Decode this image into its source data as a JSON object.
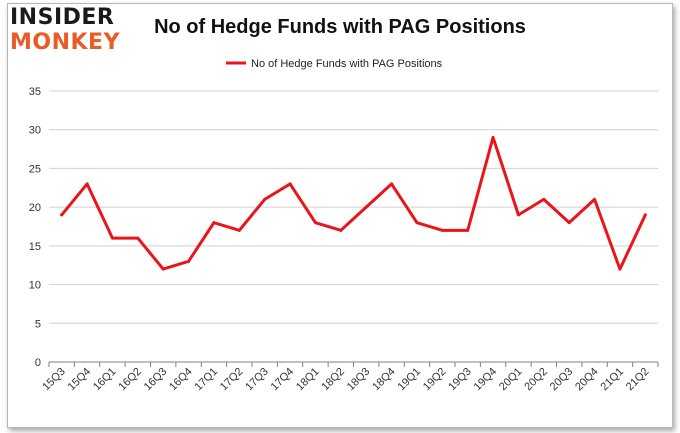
{
  "brand": {
    "line1": "INSIDER",
    "line2": "MONKEY"
  },
  "colors": {
    "series": "#e8161b",
    "grid": "#d0d0d0",
    "axis": "#808080",
    "logo_dark": "#1a1a1a",
    "logo_orange": "#ea5b26"
  },
  "chart_data": {
    "type": "line",
    "title": "No of Hedge Funds with PAG Positions",
    "xlabel": "",
    "ylabel": "",
    "ylim": [
      0,
      35
    ],
    "yticks": [
      0,
      5,
      10,
      15,
      20,
      25,
      30,
      35
    ],
    "categories": [
      "15Q3",
      "15Q4",
      "16Q1",
      "16Q2",
      "16Q3",
      "16Q4",
      "17Q1",
      "17Q2",
      "17Q3",
      "17Q4",
      "18Q1",
      "18Q2",
      "18Q3",
      "18Q4",
      "19Q1",
      "19Q2",
      "19Q3",
      "19Q4",
      "20Q1",
      "20Q2",
      "20Q3",
      "20Q4",
      "21Q1",
      "21Q2"
    ],
    "series": [
      {
        "name": "No of Hedge Funds with PAG Positions",
        "values": [
          19,
          23,
          16,
          16,
          12,
          13,
          18,
          17,
          21,
          23,
          18,
          17,
          20,
          23,
          18,
          17,
          17,
          29,
          19,
          21,
          18,
          21,
          12,
          19
        ]
      }
    ],
    "legend": "top-center",
    "grid": true
  }
}
